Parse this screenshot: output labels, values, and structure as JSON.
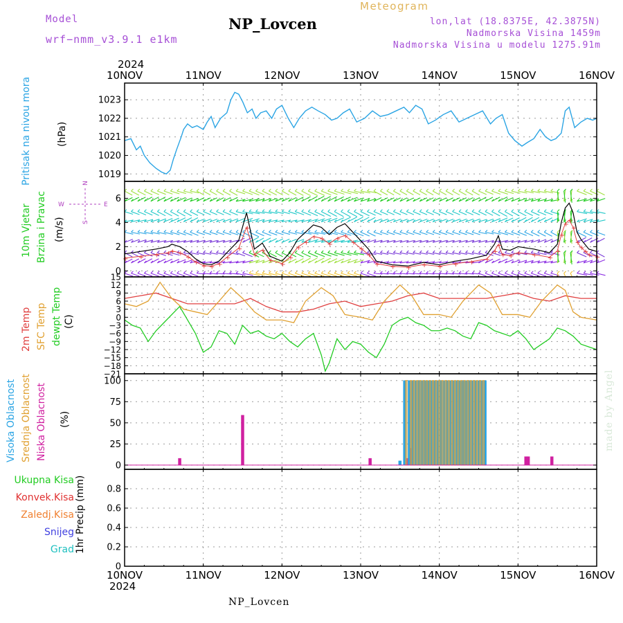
{
  "header": {
    "model_label": "Model",
    "model_name": "wrf−nmm_v3.9.1  e1km",
    "meteogram": "Meteogram",
    "station": "NP_Lovcen",
    "lonlat": "lon,lat (18.8375E, 42.3875N)",
    "elevation": "Nadmorska Visina 1459m",
    "model_elevation": "Nadmorska Visina u modelu 1275.91m",
    "year": "2024"
  },
  "footer": {
    "station": "NP_Lovcen",
    "year": "2024",
    "watermark": "made by Angel"
  },
  "colors": {
    "pressure": "#2aa4e4",
    "wind_green": "#22cc22",
    "unit_purple": "#b040c0",
    "temp2m": "#e04040",
    "sfc": "#e0a030",
    "dewpt": "#22cc22",
    "high_cloud": "#2aa4e4",
    "mid_cloud": "#e0a030",
    "low_cloud": "#d020a0",
    "kisa_total": "#22cc22",
    "kisa_konv": "#e03030",
    "kisa_zaledj": "#f08030",
    "snijeg": "#4040e0",
    "grad": "#20c0c0"
  },
  "chart_data": [
    {
      "type": "line",
      "panel": "pressure",
      "y_title": "Pritisak na nivou mora",
      "unit": "(hPa)",
      "x_ticks": [
        "10NOV",
        "11NOV",
        "12NOV",
        "13NOV",
        "14NOV",
        "15NOV",
        "16NOV"
      ],
      "ylim": [
        1018.6,
        1023.9
      ],
      "y_ticks": [
        1019,
        1020,
        1021,
        1022,
        1023
      ],
      "x": [
        0,
        0.08,
        0.15,
        0.2,
        0.25,
        0.32,
        0.4,
        0.47,
        0.53,
        0.58,
        0.62,
        0.66,
        0.72,
        0.75,
        0.8,
        0.86,
        0.92,
        1.0,
        1.05,
        1.1,
        1.15,
        1.22,
        1.3,
        1.35,
        1.4,
        1.45,
        1.5,
        1.56,
        1.62,
        1.67,
        1.73,
        1.8,
        1.87,
        1.93,
        2.0,
        2.08,
        2.15,
        2.22,
        2.3,
        2.38,
        2.46,
        2.55,
        2.63,
        2.7,
        2.78,
        2.86,
        2.95,
        3.05,
        3.15,
        3.25,
        3.35,
        3.45,
        3.55,
        3.62,
        3.7,
        3.78,
        3.86,
        3.95,
        4.05,
        4.15,
        4.25,
        4.35,
        4.45,
        4.55,
        4.65,
        4.72,
        4.8,
        4.88,
        4.96,
        5.05,
        5.12,
        5.2,
        5.28,
        5.35,
        5.42,
        5.48,
        5.55,
        5.6,
        5.65,
        5.72,
        5.8,
        5.88,
        5.95,
        6.0
      ],
      "values": [
        1020.8,
        1020.9,
        1020.3,
        1020.5,
        1020.0,
        1019.6,
        1019.3,
        1019.1,
        1019.0,
        1019.2,
        1019.8,
        1020.3,
        1021.0,
        1021.4,
        1021.7,
        1021.5,
        1021.6,
        1021.4,
        1021.8,
        1022.1,
        1021.5,
        1022.0,
        1022.3,
        1023.0,
        1023.4,
        1023.3,
        1022.9,
        1022.3,
        1022.5,
        1022.0,
        1022.3,
        1022.4,
        1022.0,
        1022.5,
        1022.7,
        1022.0,
        1021.5,
        1022.0,
        1022.4,
        1022.6,
        1022.4,
        1022.2,
        1021.9,
        1022.0,
        1022.3,
        1022.5,
        1021.8,
        1022.0,
        1022.4,
        1022.1,
        1022.2,
        1022.4,
        1022.6,
        1022.3,
        1022.7,
        1022.5,
        1021.7,
        1021.9,
        1022.2,
        1022.4,
        1021.8,
        1022.0,
        1022.2,
        1022.4,
        1021.7,
        1022.0,
        1022.2,
        1021.2,
        1020.8,
        1020.5,
        1020.7,
        1020.9,
        1021.4,
        1021.0,
        1020.8,
        1020.9,
        1021.2,
        1022.4,
        1022.6,
        1021.5,
        1021.8,
        1022.0,
        1021.9,
        1022.0
      ]
    },
    {
      "type": "line",
      "panel": "wind",
      "y_title_1": "10m Vjetar",
      "y_title_2": "Brzina i Pravac",
      "unit": "(m/s)",
      "compass": {
        "north": "N",
        "west": "W",
        "east": "E",
        "south": "S"
      },
      "ylim": [
        -0.5,
        7.4
      ],
      "y_ticks": [
        0,
        2,
        4,
        6
      ],
      "series": [
        {
          "x": [
            0,
            0.2,
            0.4,
            0.55,
            0.6,
            0.7,
            0.8,
            0.9,
            1.0,
            1.1,
            1.2,
            1.3,
            1.45,
            1.55,
            1.65,
            1.75,
            1.85,
            2.0,
            2.1,
            2.2,
            2.3,
            2.4,
            2.5,
            2.6,
            2.7,
            2.8,
            2.9,
            3.0,
            3.1,
            3.2,
            3.4,
            3.6,
            3.8,
            4.0,
            4.2,
            4.4,
            4.6,
            4.7,
            4.75,
            4.8,
            4.9,
            5.0,
            5.2,
            5.4,
            5.5,
            5.55,
            5.6,
            5.65,
            5.7,
            5.75,
            5.8,
            5.85,
            5.9,
            6.0
          ],
          "values": [
            1.4,
            1.6,
            1.8,
            2.0,
            2.2,
            2.0,
            1.6,
            1.0,
            0.6,
            0.5,
            0.8,
            1.5,
            2.5,
            4.8,
            1.8,
            2.3,
            1.2,
            0.8,
            1.5,
            2.6,
            3.2,
            3.8,
            3.6,
            3.0,
            3.6,
            3.9,
            3.2,
            2.5,
            1.8,
            0.8,
            0.5,
            0.4,
            0.7,
            0.5,
            0.8,
            1.0,
            1.3,
            2.2,
            2.9,
            1.8,
            1.7,
            2.0,
            1.8,
            1.5,
            2.2,
            4.0,
            5.2,
            5.6,
            4.8,
            3.2,
            2.6,
            2.2,
            1.8,
            1.6
          ]
        }
      ]
    },
    {
      "type": "line",
      "panel": "temperature",
      "y_title_1": "2m Temp",
      "y_title_2": "SFC Temp",
      "y_title_3": "dewpt Temp",
      "unit": "(C)",
      "ylim": [
        -21,
        15
      ],
      "y_ticks": [
        15,
        12,
        9,
        6,
        3,
        0,
        -3,
        -6,
        -9,
        -12,
        -15,
        -18,
        -21
      ],
      "series": [
        {
          "name": "2m Temp",
          "x": [
            0,
            0.2,
            0.4,
            0.6,
            0.8,
            1.0,
            1.2,
            1.4,
            1.6,
            1.8,
            2.0,
            2.2,
            2.4,
            2.6,
            2.8,
            3.0,
            3.2,
            3.4,
            3.6,
            3.8,
            4.0,
            4.2,
            4.4,
            4.6,
            4.8,
            5.0,
            5.2,
            5.4,
            5.6,
            5.8,
            6.0
          ],
          "values": [
            7,
            8,
            9,
            7,
            5,
            5,
            5,
            5,
            7,
            4,
            2,
            2,
            3,
            5,
            6,
            4,
            5,
            6,
            8,
            9,
            7,
            7,
            7,
            7,
            8,
            9,
            7,
            6,
            8,
            7,
            7
          ]
        },
        {
          "name": "SFC Temp",
          "x": [
            0,
            0.15,
            0.3,
            0.45,
            0.6,
            0.75,
            0.9,
            1.05,
            1.2,
            1.35,
            1.5,
            1.65,
            1.8,
            2.0,
            2.15,
            2.3,
            2.5,
            2.65,
            2.8,
            3.0,
            3.15,
            3.3,
            3.5,
            3.65,
            3.8,
            4.0,
            4.15,
            4.3,
            4.5,
            4.65,
            4.8,
            5.0,
            5.15,
            5.3,
            5.5,
            5.6,
            5.7,
            5.8,
            6.0
          ],
          "values": [
            5,
            4,
            6,
            13,
            7,
            3,
            2,
            1,
            6,
            11,
            7,
            2,
            -1,
            -1,
            -2,
            6,
            11,
            8,
            1,
            0,
            -1,
            6,
            12,
            8,
            1,
            1,
            0,
            6,
            12,
            9,
            1,
            1,
            0,
            6,
            12,
            10,
            2,
            0,
            -1
          ]
        },
        {
          "name": "dewpt Temp",
          "x": [
            0,
            0.1,
            0.2,
            0.3,
            0.4,
            0.5,
            0.6,
            0.7,
            0.8,
            0.9,
            1.0,
            1.1,
            1.2,
            1.3,
            1.4,
            1.5,
            1.6,
            1.7,
            1.8,
            1.9,
            2.0,
            2.1,
            2.2,
            2.3,
            2.4,
            2.5,
            2.55,
            2.6,
            2.7,
            2.8,
            2.9,
            3.0,
            3.1,
            3.2,
            3.3,
            3.4,
            3.5,
            3.6,
            3.7,
            3.8,
            3.9,
            4.0,
            4.1,
            4.2,
            4.3,
            4.4,
            4.5,
            4.6,
            4.7,
            4.8,
            4.9,
            5.0,
            5.1,
            5.2,
            5.3,
            5.4,
            5.5,
            5.6,
            5.7,
            5.8,
            5.9,
            6.0
          ],
          "values": [
            -1,
            -3,
            -4,
            -9,
            -5,
            -2,
            1,
            4,
            -1,
            -6,
            -13,
            -11,
            -5,
            -6,
            -10,
            -3,
            -6,
            -5,
            -7,
            -8,
            -6,
            -9,
            -11,
            -8,
            -6,
            -14,
            -20,
            -17,
            -8,
            -12,
            -9,
            -10,
            -13,
            -15,
            -10,
            -3,
            -1,
            0,
            -2,
            -3,
            -5,
            -5,
            -4,
            -5,
            -7,
            -8,
            -2,
            -3,
            -5,
            -6,
            -7,
            -5,
            -8,
            -12,
            -10,
            -8,
            -4,
            -5,
            -7,
            -10,
            -11,
            -12
          ]
        }
      ]
    },
    {
      "type": "bar",
      "panel": "cloud",
      "y_title_1": "Visoka Oblacnost",
      "y_title_2": "Srednja Oblacnost",
      "y_title_3": "Niska Oblacnost",
      "unit": "(%)",
      "ylim": [
        -5,
        108
      ],
      "y_ticks": [
        0,
        25,
        50,
        75,
        100
      ],
      "series": [
        {
          "name": "Niska Oblacnost",
          "x": [
            0.7,
            1.5,
            3.12,
            3.6,
            3.65,
            5.1,
            5.13,
            5.43
          ],
          "values": [
            8,
            59,
            8,
            8,
            20,
            10,
            10,
            10
          ]
        },
        {
          "name": "Visoka Oblacnost",
          "x": [
            3.5,
            3.56,
            3.62,
            3.66,
            3.7,
            3.74,
            3.78,
            3.82,
            3.86,
            3.9,
            3.94,
            3.98,
            4.02,
            4.06,
            4.1,
            4.14,
            4.18,
            4.22,
            4.26,
            4.3,
            4.34,
            4.38,
            4.42,
            4.46,
            4.5,
            4.54,
            4.58
          ],
          "values": [
            5,
            100,
            100,
            100,
            100,
            100,
            100,
            100,
            100,
            100,
            100,
            100,
            100,
            100,
            100,
            100,
            100,
            100,
            100,
            100,
            100,
            100,
            100,
            100,
            100,
            100,
            100
          ]
        },
        {
          "name": "Srednja Oblacnost",
          "x": [
            3.58,
            3.64,
            3.68,
            3.72,
            3.76,
            3.8,
            3.84,
            3.88,
            3.92,
            3.96,
            4.0,
            4.04,
            4.08,
            4.12,
            4.16,
            4.2,
            4.24,
            4.28,
            4.32,
            4.36,
            4.4,
            4.44,
            4.48,
            4.52,
            4.56
          ],
          "values": [
            100,
            100,
            100,
            100,
            100,
            100,
            100,
            100,
            100,
            100,
            100,
            100,
            100,
            100,
            100,
            100,
            100,
            100,
            100,
            100,
            100,
            100,
            100,
            100,
            100
          ]
        }
      ]
    },
    {
      "type": "line",
      "panel": "precip",
      "y_title": "1hr Precip (mm)",
      "legend": [
        "Ukupna Kisa",
        "Konvek.Kisa",
        "Zaledj.Kisa",
        "Snijeg",
        "Grad"
      ],
      "ylim": [
        0,
        1.0
      ],
      "y_ticks": [
        "0",
        "0.2",
        "0.4",
        "0.6",
        "0.8"
      ],
      "values": []
    }
  ]
}
